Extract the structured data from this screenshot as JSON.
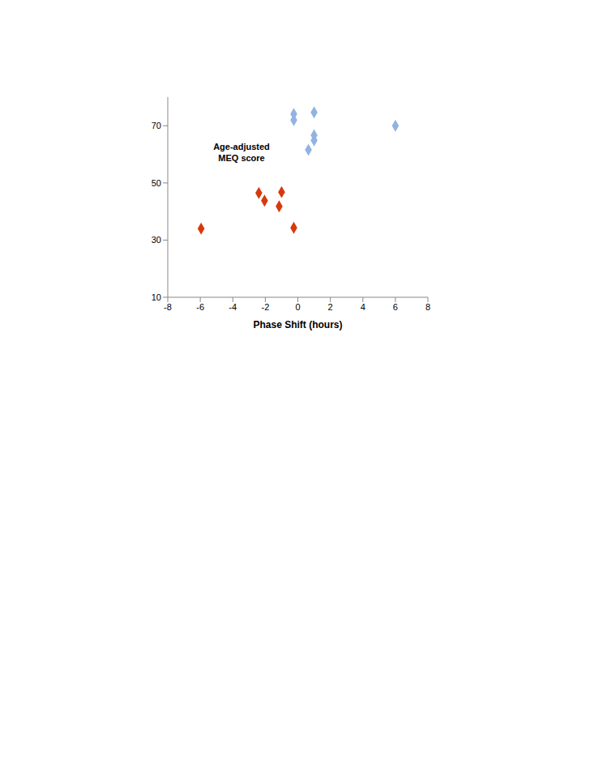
{
  "chart_data": {
    "type": "scatter",
    "x_label": "Phase Shift (hours)",
    "y_label": "Age-adjusted MEQ score",
    "xlim": [
      -8,
      8
    ],
    "xticks": [
      -8,
      -6,
      -4,
      -2,
      0,
      2,
      4,
      6,
      8
    ],
    "ylim": [
      10,
      80
    ],
    "yticks": [
      10,
      30,
      50,
      70
    ],
    "grid": false,
    "series": [
      {
        "color": "#d63a0c",
        "marker": "diamond",
        "x": [
          -5.95,
          -2.4,
          -2.05,
          -1.0,
          -1.15,
          -0.25
        ],
        "values": [
          34,
          46.5,
          43.8,
          46.8,
          41.8,
          34.3
        ]
      },
      {
        "color": "#92b3e2",
        "marker": "diamond",
        "x": [
          -0.25,
          -0.25,
          1.0,
          6.0,
          1.0,
          1.0,
          0.65
        ],
        "values": [
          74.1,
          72,
          74.7,
          70,
          66.7,
          64.9,
          61.6
        ]
      }
    ]
  }
}
